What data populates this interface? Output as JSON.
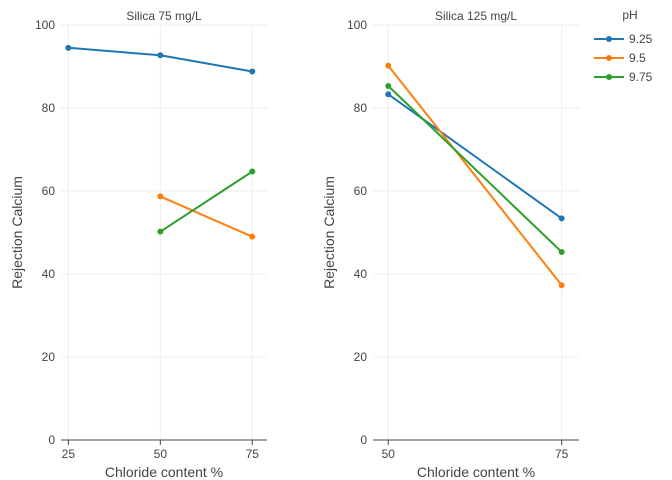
{
  "chart_data": [
    {
      "type": "line",
      "title": "Silica 75 mg/L",
      "xlabel": "Chloride content %",
      "ylabel": "Rejection Calcium",
      "x_ticks": [
        25,
        50,
        75
      ],
      "xlim": [
        23,
        79
      ],
      "ylim": [
        0,
        100
      ],
      "y_ticks": [
        0,
        20,
        40,
        60,
        80,
        100
      ],
      "series": [
        {
          "name": "9.25",
          "color": "#1f77b4",
          "x": [
            25,
            50,
            75
          ],
          "y": [
            94.5,
            92.7,
            88.8
          ]
        },
        {
          "name": "9.5",
          "color": "#ff7f0e",
          "x": [
            50,
            75
          ],
          "y": [
            58.7,
            49.0
          ]
        },
        {
          "name": "9.75",
          "color": "#2ca02c",
          "x": [
            50,
            75
          ],
          "y": [
            50.2,
            64.7
          ]
        }
      ]
    },
    {
      "type": "line",
      "title": "Silica 125 mg/L",
      "xlabel": "Chloride content %",
      "ylabel": "Rejection Calcium",
      "x_ticks": [
        50,
        75
      ],
      "xlim": [
        47.8,
        77.5
      ],
      "ylim": [
        0,
        100
      ],
      "y_ticks": [
        0,
        20,
        40,
        60,
        80,
        100
      ],
      "series": [
        {
          "name": "9.25",
          "color": "#1f77b4",
          "x": [
            50,
            75
          ],
          "y": [
            83.3,
            53.4
          ]
        },
        {
          "name": "9.5",
          "color": "#ff7f0e",
          "x": [
            50,
            75
          ],
          "y": [
            90.2,
            37.3
          ]
        },
        {
          "name": "9.75",
          "color": "#2ca02c",
          "x": [
            50,
            75
          ],
          "y": [
            85.3,
            45.3
          ]
        }
      ]
    }
  ],
  "legend": {
    "title": "pH",
    "placement": "top-right",
    "items": [
      {
        "label": "9.25",
        "color": "#1f77b4"
      },
      {
        "label": "9.5",
        "color": "#ff7f0e"
      },
      {
        "label": "9.75",
        "color": "#2ca02c"
      }
    ]
  }
}
